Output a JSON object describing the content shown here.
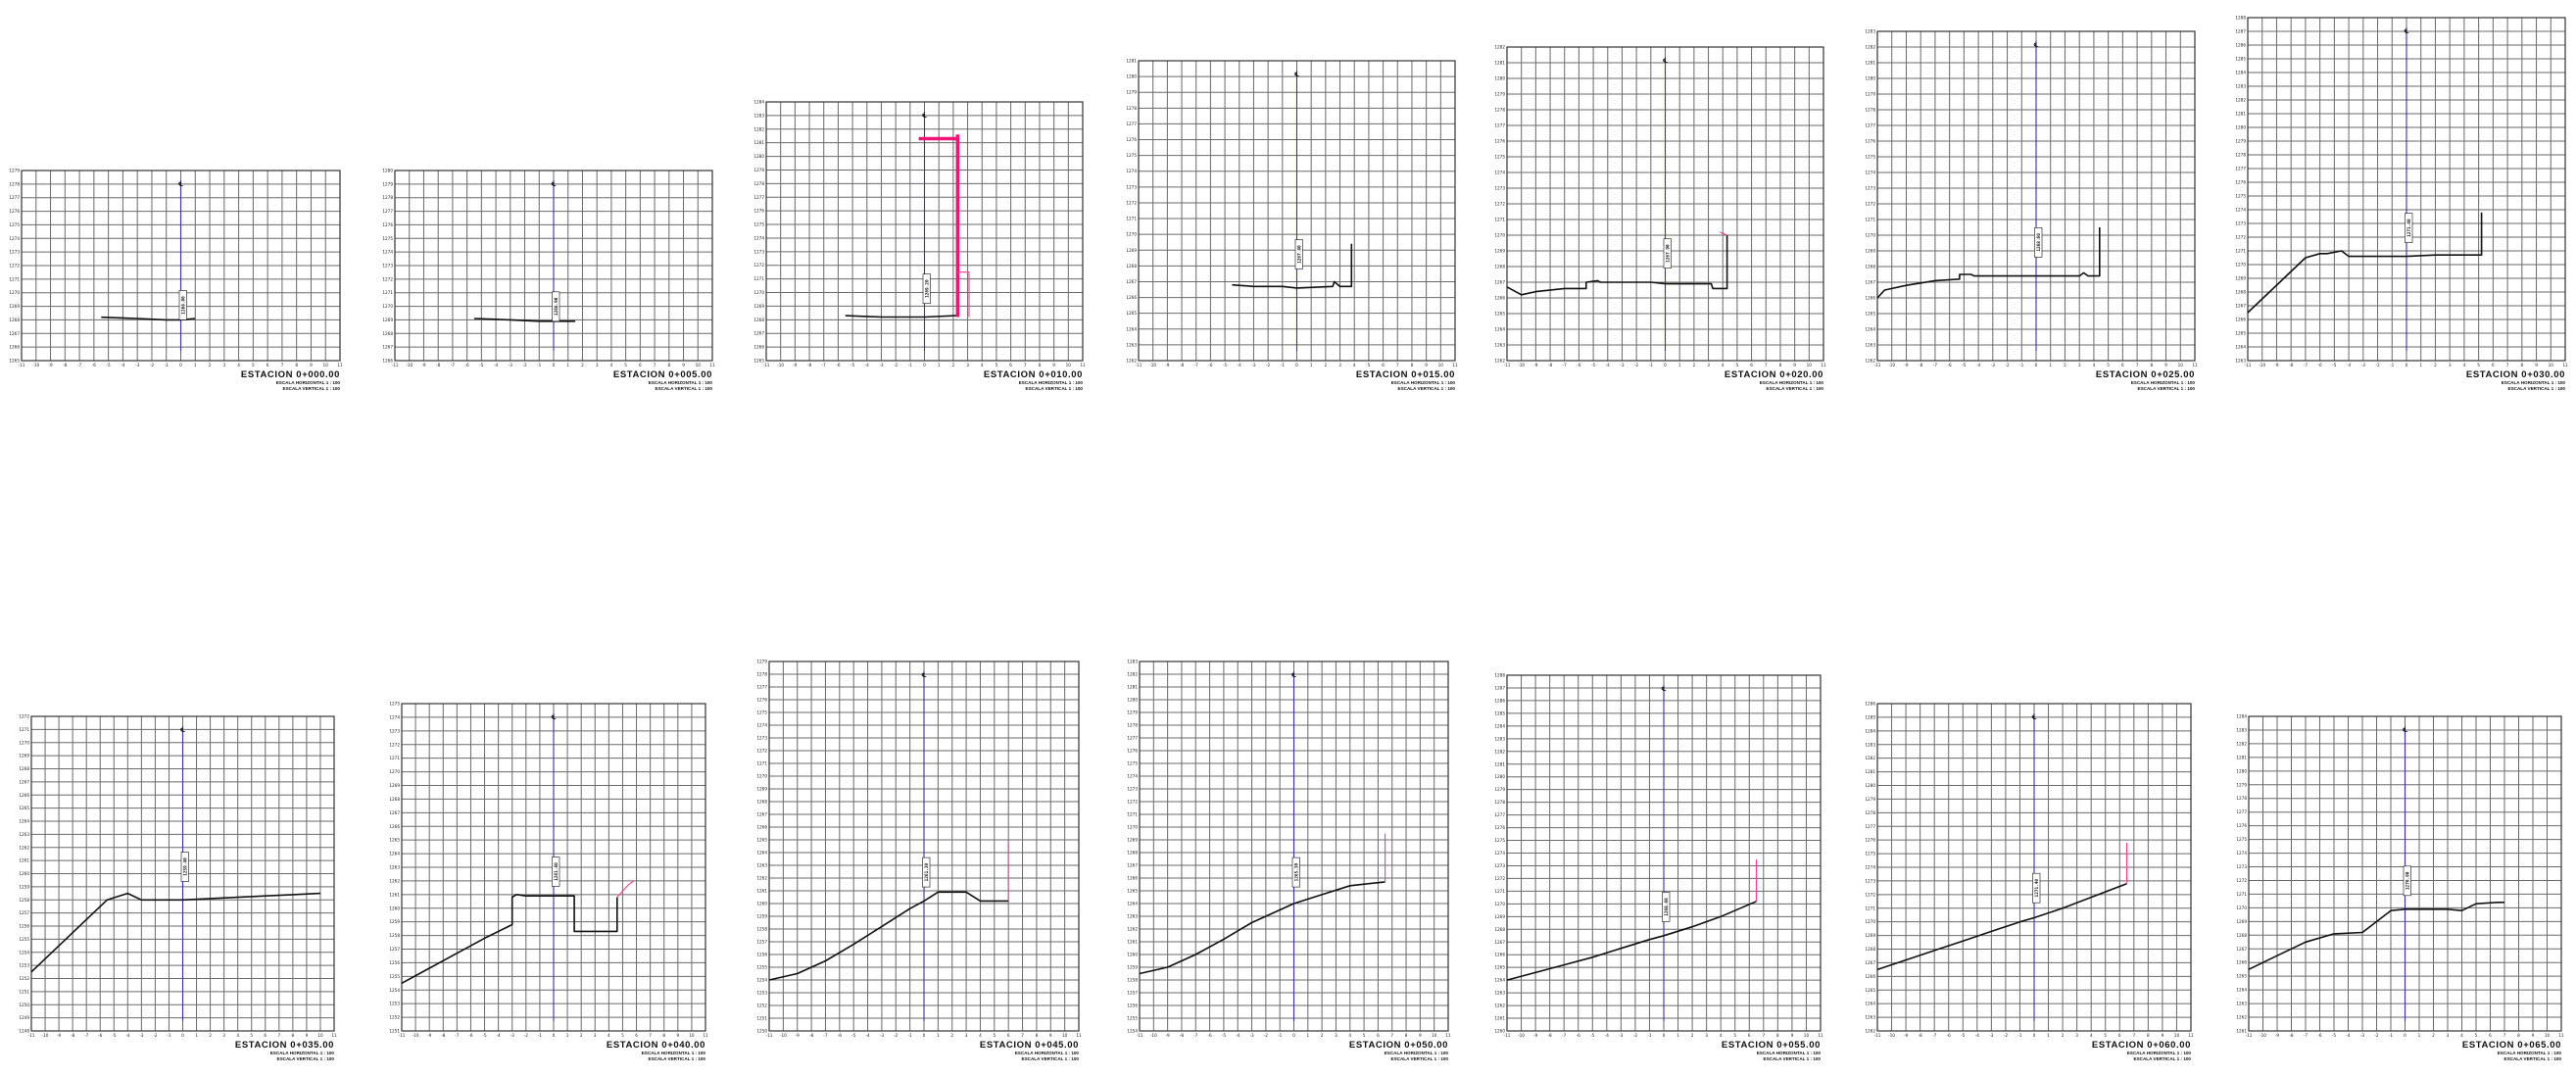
{
  "sheet": {
    "scale_h_label": "ESCALA HORIZONTAL  1 : 100",
    "scale_v_label": "ESCALA VERTICAL  1 : 100",
    "centerline_symbol": "℄",
    "colors": {
      "grid": "#6a6a6a",
      "centerline": "#3b2fb0",
      "terrain": "#111111",
      "rasante": "#ff3d8b"
    }
  },
  "chart_data": [
    {
      "type": "line",
      "title": "ESTACION 0+000.00",
      "x_ticks": [
        -11,
        -10,
        -9,
        -8,
        -7,
        -6,
        -5,
        -4,
        -3,
        -2,
        -1,
        0,
        1,
        2,
        3,
        4,
        5,
        6,
        7,
        8,
        9,
        10,
        11
      ],
      "xlim": [
        -11,
        11
      ],
      "ylim": [
        1265,
        1279
      ],
      "series": [
        {
          "role": "terreno",
          "x": [
            -5.5,
            -3,
            -1,
            0,
            1
          ],
          "y": [
            1268.2,
            1268.1,
            1268,
            1268,
            1268.1
          ]
        }
      ],
      "centerline_elev": "1268.00"
    },
    {
      "type": "line",
      "title": "ESTACION 0+005.00",
      "x_ticks": [
        -11,
        -10,
        -9,
        -8,
        -7,
        -6,
        -5,
        -4,
        -3,
        -2,
        -1,
        0,
        1,
        2,
        3,
        4,
        5,
        6,
        7,
        8,
        9,
        10,
        11
      ],
      "xlim": [
        -11,
        11
      ],
      "ylim": [
        1266,
        1280
      ],
      "series": [
        {
          "role": "terreno",
          "x": [
            -5.5,
            -3,
            -1,
            0,
            1.5
          ],
          "y": [
            1269.1,
            1269,
            1268.9,
            1268.9,
            1268.9
          ]
        }
      ],
      "centerline_elev": "1268.90"
    },
    {
      "type": "line",
      "title": "ESTACION 0+010.00",
      "x_ticks": [
        -11,
        -10,
        -9,
        -8,
        -7,
        -6,
        -5,
        -4,
        -3,
        -2,
        -1,
        0,
        1,
        2,
        3,
        4,
        5,
        6,
        7,
        8,
        9,
        10,
        11
      ],
      "xlim": [
        -11,
        11
      ],
      "ylim": [
        1265,
        1284
      ],
      "series": [
        {
          "role": "terreno",
          "x": [
            -5.5,
            -3,
            -1,
            0,
            2.2
          ],
          "y": [
            1268.3,
            1268.2,
            1268.2,
            1268.2,
            1268.3
          ]
        },
        {
          "role": "rasante",
          "x": [
            -0.4,
            2.3,
            2.3,
            2.3
          ],
          "y": [
            1281.3,
            1281.3,
            1281.6,
            1268.2
          ]
        },
        {
          "role": "rasante-talud",
          "x": [
            2.3,
            3.1,
            3.1
          ],
          "y": [
            1271.5,
            1271.5,
            1268.2
          ]
        }
      ],
      "centerline_elev": "1269.20"
    },
    {
      "type": "line",
      "title": "ESTACION 0+015.00",
      "x_ticks": [
        -11,
        -10,
        -9,
        -8,
        -7,
        -6,
        -5,
        -4,
        -3,
        -2,
        -1,
        0,
        1,
        2,
        3,
        4,
        5,
        6,
        7,
        8,
        9,
        10,
        11
      ],
      "xlim": [
        -11,
        11
      ],
      "ylim": [
        1262,
        1281
      ],
      "series": [
        {
          "role": "terreno",
          "x": [
            -4.5,
            -3,
            -1,
            0,
            2.5,
            2.6,
            3,
            3.8,
            3.8
          ],
          "y": [
            1266.8,
            1266.7,
            1266.7,
            1266.6,
            1266.7,
            1267,
            1266.7,
            1266.7,
            1269.4
          ]
        }
      ],
      "centerline_elev": "1267.80"
    },
    {
      "type": "line",
      "title": "ESTACION 0+020.00",
      "x_ticks": [
        -11,
        -10,
        -9,
        -8,
        -7,
        -6,
        -5,
        -4,
        -3,
        -2,
        -1,
        0,
        1,
        2,
        3,
        4,
        5,
        6,
        7,
        8,
        9,
        10,
        11
      ],
      "xlim": [
        -11,
        11
      ],
      "ylim": [
        1262,
        1282
      ],
      "series": [
        {
          "role": "terreno",
          "x": [
            -11,
            -10,
            -9,
            -7,
            -5.5,
            -5.5,
            -4.7,
            -4.5,
            -3,
            -1,
            0,
            2,
            3.2,
            3.3,
            4.3,
            4.3
          ],
          "y": [
            1266.7,
            1266.2,
            1266.4,
            1266.6,
            1266.6,
            1267,
            1267.1,
            1267,
            1267,
            1267,
            1266.9,
            1266.9,
            1266.9,
            1266.6,
            1266.6,
            1270
          ]
        },
        {
          "role": "rasante",
          "x": [
            3.8,
            4.3
          ],
          "y": [
            1270.2,
            1270
          ]
        }
      ],
      "centerline_elev": "1267.90"
    },
    {
      "type": "line",
      "title": "ESTACION 0+025.00",
      "x_ticks": [
        -11,
        -10,
        -9,
        -8,
        -7,
        -6,
        -5,
        -4,
        -3,
        -2,
        -1,
        0,
        1,
        2,
        3,
        4,
        5,
        6,
        7,
        8,
        9,
        10,
        11
      ],
      "xlim": [
        -11,
        11
      ],
      "ylim": [
        1262,
        1283
      ],
      "series": [
        {
          "role": "terreno",
          "x": [
            -11,
            -10.5,
            -9,
            -7,
            -5.3,
            -5.3,
            -4.5,
            -4.3,
            -3,
            -1,
            0,
            2,
            3,
            3.3,
            3.6,
            4.4,
            4.4
          ],
          "y": [
            1266,
            1266.5,
            1266.8,
            1267.1,
            1267.2,
            1267.5,
            1267.5,
            1267.4,
            1267.4,
            1267.4,
            1267.4,
            1267.4,
            1267.4,
            1267.6,
            1267.4,
            1267.4,
            1270.5
          ]
        }
      ],
      "centerline_elev": "1268.60"
    },
    {
      "type": "line",
      "title": "ESTACION 0+030.00",
      "x_ticks": [
        -11,
        -10,
        -9,
        -8,
        -7,
        -6,
        -5,
        -4,
        -3,
        -2,
        -1,
        0,
        1,
        2,
        3,
        4,
        5,
        6,
        7,
        8,
        9,
        10,
        11
      ],
      "xlim": [
        -11,
        11
      ],
      "ylim": [
        1263,
        1288
      ],
      "series": [
        {
          "role": "terreno",
          "x": [
            -11,
            -9,
            -7,
            -6,
            -5.5,
            -4.5,
            -4,
            -3,
            -1,
            0,
            2,
            3,
            4,
            5.2,
            5.2
          ],
          "y": [
            1266.5,
            1268.5,
            1270.5,
            1270.8,
            1270.8,
            1271,
            1270.6,
            1270.6,
            1270.6,
            1270.6,
            1270.7,
            1270.7,
            1270.7,
            1270.7,
            1273.8
          ]
        }
      ],
      "centerline_elev": "1271.60"
    },
    {
      "type": "line",
      "title": "ESTACION 0+035.00",
      "x_ticks": [
        -11,
        -10,
        -9,
        -8,
        -7,
        -6,
        -5,
        -4,
        -3,
        -2,
        -1,
        0,
        1,
        2,
        3,
        4,
        5,
        6,
        7,
        8,
        9,
        10,
        11
      ],
      "xlim": [
        -11,
        11
      ],
      "ylim": [
        1248,
        1272
      ],
      "series": [
        {
          "role": "terreno",
          "x": [
            -11,
            -9,
            -7,
            -5.5,
            -4,
            -3,
            -2.5,
            -1,
            0,
            2,
            4,
            6,
            8,
            10
          ],
          "y": [
            1252.5,
            1254.5,
            1256.5,
            1258,
            1258.5,
            1258,
            1258,
            1258,
            1258,
            1258.1,
            1258.2,
            1258.3,
            1258.4,
            1258.5
          ]
        }
      ],
      "centerline_elev": "1259.40"
    },
    {
      "type": "line",
      "title": "ESTACION 0+040.00",
      "x_ticks": [
        -11,
        -10,
        -9,
        -8,
        -7,
        -6,
        -5,
        -4,
        -3,
        -2,
        -1,
        0,
        1,
        2,
        3,
        4,
        5,
        6,
        7,
        8,
        9,
        10,
        11
      ],
      "xlim": [
        -11,
        11
      ],
      "ylim": [
        1251,
        1275
      ],
      "series": [
        {
          "role": "terreno",
          "x": [
            -11,
            -9,
            -7,
            -5,
            -3,
            -3,
            -2.7,
            -2,
            -1,
            0,
            1.5,
            1.5,
            2.5,
            3.5,
            4.6,
            4.6
          ],
          "y": [
            1254.5,
            1255.6,
            1256.7,
            1257.8,
            1258.8,
            1260.8,
            1261,
            1260.9,
            1260.9,
            1260.9,
            1260.9,
            1258.3,
            1258.3,
            1258.3,
            1258.3,
            1260.8
          ]
        },
        {
          "role": "rasante",
          "x": [
            4.6,
            5.4,
            5.8
          ],
          "y": [
            1260.8,
            1261.7,
            1262
          ]
        }
      ],
      "centerline_elev": "1261.60"
    },
    {
      "type": "line",
      "title": "ESTACION 0+045.00",
      "x_ticks": [
        -11,
        -10,
        -9,
        -8,
        -7,
        -6,
        -5,
        -4,
        -3,
        -2,
        -1,
        0,
        1,
        2,
        3,
        4,
        5,
        6,
        7,
        8,
        9,
        10,
        11
      ],
      "xlim": [
        -11,
        11
      ],
      "ylim": [
        1250,
        1279
      ],
      "series": [
        {
          "role": "terreno",
          "x": [
            -11,
            -9,
            -7,
            -5,
            -3,
            -1,
            0,
            1,
            3,
            4,
            5,
            6
          ],
          "y": [
            1254,
            1254.5,
            1255.5,
            1256.8,
            1258.2,
            1259.6,
            1260.2,
            1260.9,
            1260.9,
            1260.2,
            1260.2,
            1260.2
          ]
        },
        {
          "role": "rasante",
          "x": [
            6,
            6
          ],
          "y": [
            1260.2,
            1265
          ]
        }
      ],
      "centerline_elev": "1261.30"
    },
    {
      "type": "line",
      "title": "ESTACION 0+050.00",
      "x_ticks": [
        -11,
        -10,
        -9,
        -8,
        -7,
        -6,
        -5,
        -4,
        -3,
        -2,
        -1,
        0,
        1,
        2,
        3,
        4,
        5,
        6,
        7,
        8,
        9,
        10,
        11
      ],
      "xlim": [
        -11,
        11
      ],
      "ylim": [
        1254,
        1283
      ],
      "series": [
        {
          "role": "terreno",
          "x": [
            -11,
            -9,
            -7,
            -5,
            -3,
            -1,
            0,
            2,
            4,
            6.5
          ],
          "y": [
            1258.5,
            1259,
            1260,
            1261.2,
            1262.5,
            1263.5,
            1264,
            1264.7,
            1265.4,
            1265.7
          ]
        },
        {
          "role": "rasante",
          "x": [
            6.5,
            6.5
          ],
          "y": [
            1265.7,
            1269.5
          ]
        }
      ],
      "centerline_elev": "1265.30"
    },
    {
      "type": "line",
      "title": "ESTACION 0+055.00",
      "x_ticks": [
        -11,
        -10,
        -9,
        -8,
        -7,
        -6,
        -5,
        -4,
        -3,
        -2,
        -1,
        0,
        1,
        2,
        3,
        4,
        5,
        6,
        7,
        8,
        9,
        10,
        11
      ],
      "xlim": [
        -11,
        11
      ],
      "ylim": [
        1260,
        1288
      ],
      "series": [
        {
          "role": "terreno",
          "x": [
            -11,
            -9,
            -7,
            -5,
            -3,
            -1,
            0,
            2,
            4,
            6.5
          ],
          "y": [
            1264,
            1264.6,
            1265.2,
            1265.8,
            1266.5,
            1267.2,
            1267.5,
            1268.2,
            1269,
            1270.2
          ]
        },
        {
          "role": "rasante",
          "x": [
            6.5,
            6.5
          ],
          "y": [
            1270.2,
            1273.5
          ]
        }
      ],
      "centerline_elev": "1268.60"
    },
    {
      "type": "line",
      "title": "ESTACION 0+060.00",
      "x_ticks": [
        -11,
        -10,
        -9,
        -8,
        -7,
        -6,
        -5,
        -4,
        -3,
        -2,
        -1,
        0,
        1,
        2,
        3,
        4,
        5,
        6,
        7,
        8,
        9,
        10,
        11
      ],
      "xlim": [
        -11,
        11
      ],
      "ylim": [
        1262,
        1286
      ],
      "series": [
        {
          "role": "terreno",
          "x": [
            -11,
            -9,
            -7,
            -5,
            -3,
            -1,
            0,
            2,
            4,
            6.5
          ],
          "y": [
            1266.5,
            1267.2,
            1267.9,
            1268.6,
            1269.3,
            1270,
            1270.3,
            1271,
            1271.8,
            1272.8
          ]
        },
        {
          "role": "rasante",
          "x": [
            6.5,
            6.5
          ],
          "y": [
            1272.8,
            1275.8
          ]
        }
      ],
      "centerline_elev": "1271.40"
    },
    {
      "type": "line",
      "title": "ESTACION 0+065.00",
      "x_ticks": [
        -11,
        -10,
        -9,
        -8,
        -7,
        -6,
        -5,
        -4,
        -3,
        -2,
        -1,
        0,
        1,
        2,
        3,
        4,
        5,
        6,
        7,
        8,
        9,
        10,
        11
      ],
      "xlim": [
        -11,
        11
      ],
      "ylim": [
        1261,
        1284
      ],
      "series": [
        {
          "role": "terreno",
          "x": [
            -11,
            -9,
            -7,
            -5,
            -3,
            -1,
            0,
            1,
            3,
            4,
            5,
            6.5,
            7
          ],
          "y": [
            1265.5,
            1266.5,
            1267.5,
            1268.1,
            1268.2,
            1269.8,
            1269.9,
            1269.9,
            1269.9,
            1269.8,
            1270.3,
            1270.4,
            1270.4
          ]
        }
      ],
      "centerline_elev": "1270.90"
    }
  ]
}
